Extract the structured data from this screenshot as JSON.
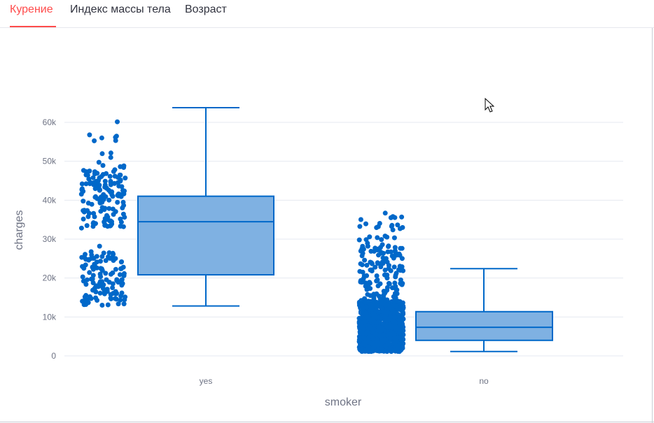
{
  "tabs": [
    {
      "label": "Курение",
      "active": true
    },
    {
      "label": "Индекс массы тела",
      "active": false
    },
    {
      "label": "Возраст",
      "active": false
    }
  ],
  "colors": {
    "accent": "#ff4b4b",
    "marker": "#0068c9",
    "box_fill": "#7fb1e2",
    "grid": "#e6e9f0",
    "axis_text": "#6e7384"
  },
  "icons": {
    "cursor": "arrow-cursor-icon"
  },
  "chart_data": {
    "type": "box",
    "xlabel": "smoker",
    "ylabel": "charges",
    "ylim": [
      -2000,
      68000
    ],
    "yticks": [
      0,
      10000,
      20000,
      30000,
      40000,
      50000,
      60000
    ],
    "ytick_labels": [
      "0",
      "10k",
      "20k",
      "30k",
      "40k",
      "50k",
      "60k"
    ],
    "categories": [
      "yes",
      "no"
    ],
    "boxes": [
      {
        "category": "yes",
        "min": 12830,
        "q1": 20830,
        "median": 34460,
        "q3": 41020,
        "max": 63770
      },
      {
        "category": "no",
        "min": 1120,
        "q1": 3990,
        "median": 7350,
        "q3": 11360,
        "max": 22410
      }
    ],
    "points_shown": true
  }
}
